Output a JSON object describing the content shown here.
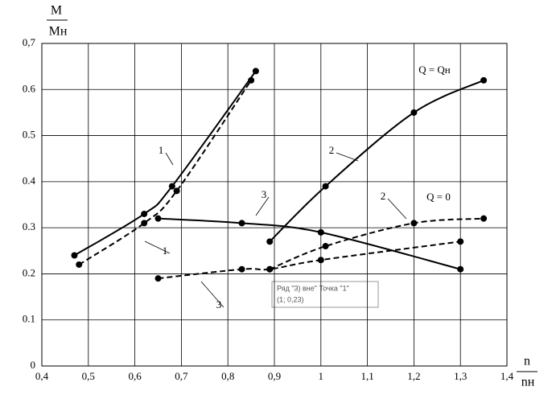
{
  "chart_data": {
    "type": "line",
    "ylabel_numerator": "M",
    "ylabel_denominator": "Mн",
    "xlabel_numerator": "n",
    "xlabel_denominator": "nн",
    "xlim": [
      0.4,
      1.4
    ],
    "xticks": [
      {
        "value": 0.4,
        "label": "0,4"
      },
      {
        "value": 0.5,
        "label": "0,5"
      },
      {
        "value": 0.6,
        "label": "0,6"
      },
      {
        "value": 0.7,
        "label": "0,7"
      },
      {
        "value": 0.8,
        "label": "0,8"
      },
      {
        "value": 0.9,
        "label": "0,9"
      },
      1,
      {
        "value": 1.1,
        "label": "1,1"
      },
      {
        "value": 1.2,
        "label": "1,2"
      },
      {
        "value": 1.3,
        "label": "1,3"
      },
      {
        "value": 1.4,
        "label": "1,4"
      }
    ],
    "ylim": [
      0,
      0.7
    ],
    "yticks": [
      0,
      0.1,
      0.2,
      0.3,
      0.4,
      0.5,
      0.6,
      {
        "value": 0.7,
        "label": "0,7"
      }
    ],
    "grid": true,
    "series": [
      {
        "name": "1",
        "color": "#000000",
        "dashed": false,
        "x": [
          0.47,
          0.62,
          0.68,
          0.86
        ],
        "values": [
          0.24,
          0.33,
          0.39,
          0.64
        ]
      },
      {
        "name": "1",
        "color": "#000000",
        "dashed": true,
        "x": [
          0.48,
          0.62,
          0.69,
          0.85
        ],
        "values": [
          0.22,
          0.31,
          0.38,
          0.62
        ]
      },
      {
        "name": "2",
        "color": "#000000",
        "dashed": false,
        "x": [
          0.89,
          1.01,
          1.2,
          1.35
        ],
        "values": [
          0.27,
          0.39,
          0.55,
          0.62
        ]
      },
      {
        "name": "2",
        "color": "#000000",
        "dashed": true,
        "x": [
          0.89,
          1.01,
          1.2,
          1.35
        ],
        "values": [
          0.21,
          0.26,
          0.31,
          0.32
        ]
      },
      {
        "name": "3",
        "color": "#000000",
        "dashed": false,
        "x": [
          0.65,
          0.83,
          1.0,
          1.3
        ],
        "values": [
          0.32,
          0.31,
          0.29,
          0.21
        ]
      },
      {
        "name": "3",
        "color": "#000000",
        "dashed": true,
        "x": [
          0.65,
          0.83,
          0.89,
          1.0,
          1.3
        ],
        "values": [
          0.19,
          0.21,
          0.21,
          0.23,
          0.27
        ]
      }
    ],
    "annotations": [
      "Q = Qн",
      "Q = 0"
    ],
    "tooltip": [
      "Ряд \"3) вне\" Точка \"1\"",
      "(1; 0,23)"
    ]
  }
}
